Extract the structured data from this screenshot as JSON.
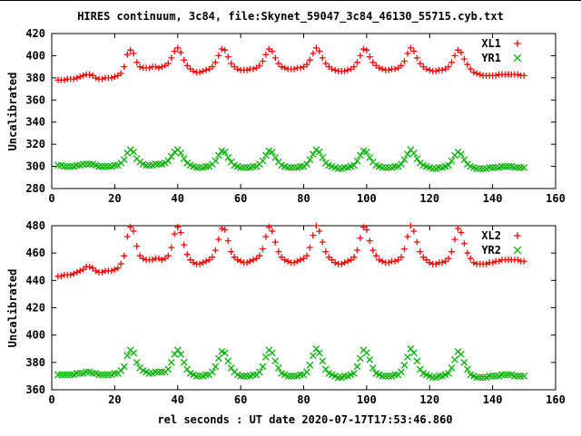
{
  "title": "HIRES continuum, 3c84, file:Skynet_59047_3c84_46130_55715.cyb.txt",
  "xlabel": "rel seconds : UT date 2020-07-17T17:53:46.860",
  "colors": {
    "red": "#ff0000",
    "green": "#00b000",
    "frame": "#000000"
  },
  "chart_data": [
    {
      "type": "scatter",
      "ylabel": "Uncalibrated",
      "xlim": [
        0,
        160
      ],
      "ylim": [
        280,
        420
      ],
      "x_ticks": [
        0,
        20,
        40,
        60,
        80,
        100,
        120,
        140,
        160
      ],
      "y_ticks": [
        280,
        300,
        320,
        340,
        360,
        380,
        400,
        420
      ],
      "grid": false,
      "legend_position": "top-right",
      "series": [
        {
          "name": "XL1",
          "marker": "plus",
          "color": "#ff0000",
          "x_start": 2,
          "x_step": 1,
          "values": [
            378,
            378,
            378,
            379,
            379,
            379,
            380,
            381,
            382,
            383,
            383,
            382,
            380,
            379,
            379,
            380,
            380,
            380,
            381,
            382,
            384,
            390,
            401,
            405,
            402,
            394,
            390,
            389,
            389,
            389,
            390,
            390,
            389,
            390,
            391,
            393,
            398,
            404,
            407,
            403,
            396,
            391,
            388,
            386,
            385,
            385,
            386,
            387,
            388,
            390,
            394,
            400,
            406,
            405,
            399,
            393,
            390,
            388,
            387,
            387,
            387,
            388,
            388,
            389,
            391,
            395,
            401,
            406,
            404,
            398,
            393,
            390,
            389,
            388,
            388,
            388,
            389,
            389,
            390,
            392,
            396,
            402,
            407,
            404,
            398,
            393,
            390,
            388,
            387,
            386,
            386,
            386,
            387,
            388,
            390,
            394,
            400,
            406,
            405,
            399,
            394,
            391,
            389,
            388,
            387,
            387,
            388,
            388,
            389,
            391,
            395,
            402,
            407,
            404,
            398,
            393,
            390,
            388,
            387,
            386,
            386,
            387,
            387,
            388,
            390,
            394,
            400,
            405,
            403,
            397,
            392,
            388,
            385,
            384,
            383,
            382,
            382,
            382,
            382,
            382,
            383,
            383,
            383,
            383,
            383,
            383,
            383,
            382,
            382
          ]
        },
        {
          "name": "YR1",
          "marker": "cross",
          "color": "#00b000",
          "x_start": 2,
          "x_step": 1,
          "values": [
            301,
            301,
            300,
            300,
            300,
            300,
            301,
            301,
            302,
            302,
            302,
            302,
            301,
            300,
            300,
            300,
            300,
            300,
            301,
            301,
            303,
            306,
            312,
            315,
            313,
            307,
            304,
            302,
            301,
            301,
            301,
            302,
            302,
            302,
            303,
            305,
            309,
            313,
            315,
            312,
            307,
            303,
            301,
            300,
            299,
            299,
            299,
            300,
            300,
            302,
            305,
            310,
            314,
            313,
            308,
            304,
            301,
            300,
            299,
            299,
            299,
            299,
            300,
            300,
            302,
            305,
            310,
            314,
            313,
            308,
            304,
            301,
            300,
            299,
            299,
            299,
            299,
            300,
            300,
            302,
            306,
            311,
            315,
            313,
            308,
            303,
            301,
            300,
            299,
            298,
            298,
            299,
            299,
            300,
            301,
            305,
            310,
            314,
            313,
            308,
            304,
            301,
            300,
            299,
            299,
            299,
            299,
            300,
            300,
            302,
            306,
            311,
            315,
            312,
            307,
            303,
            301,
            300,
            299,
            298,
            298,
            299,
            299,
            300,
            301,
            305,
            310,
            313,
            311,
            306,
            302,
            300,
            299,
            298,
            298,
            298,
            298,
            299,
            299,
            299,
            299,
            300,
            300,
            300,
            300,
            299,
            299,
            299,
            299
          ]
        }
      ]
    },
    {
      "type": "scatter",
      "ylabel": "Uncalibrated",
      "xlim": [
        0,
        160
      ],
      "ylim": [
        360,
        480
      ],
      "x_ticks": [
        0,
        20,
        40,
        60,
        80,
        100,
        120,
        140,
        160
      ],
      "y_ticks": [
        360,
        380,
        400,
        420,
        440,
        460,
        480
      ],
      "grid": false,
      "legend_position": "top-right",
      "series": [
        {
          "name": "XL2",
          "marker": "plus",
          "color": "#ff0000",
          "x_start": 2,
          "x_step": 1,
          "values": [
            443,
            443,
            444,
            444,
            444,
            445,
            446,
            447,
            448,
            450,
            450,
            449,
            447,
            446,
            446,
            447,
            447,
            447,
            448,
            449,
            452,
            458,
            472,
            479,
            476,
            465,
            458,
            456,
            455,
            455,
            455,
            456,
            456,
            455,
            456,
            458,
            464,
            474,
            479,
            475,
            466,
            459,
            455,
            453,
            452,
            452,
            453,
            454,
            455,
            457,
            462,
            470,
            478,
            477,
            469,
            461,
            457,
            455,
            454,
            453,
            453,
            454,
            455,
            456,
            458,
            463,
            472,
            479,
            476,
            468,
            461,
            457,
            455,
            454,
            453,
            453,
            454,
            455,
            456,
            458,
            464,
            473,
            480,
            476,
            468,
            461,
            457,
            455,
            453,
            452,
            452,
            453,
            454,
            455,
            457,
            462,
            471,
            479,
            477,
            469,
            462,
            458,
            455,
            454,
            453,
            453,
            454,
            454,
            455,
            457,
            463,
            472,
            480,
            476,
            468,
            461,
            457,
            455,
            453,
            452,
            452,
            453,
            453,
            454,
            456,
            461,
            470,
            478,
            475,
            467,
            460,
            456,
            453,
            452,
            452,
            452,
            452,
            453,
            453,
            454,
            454,
            455,
            455,
            455,
            455,
            455,
            455,
            454,
            454
          ]
        },
        {
          "name": "YR2",
          "marker": "cross",
          "color": "#00b000",
          "x_start": 2,
          "x_step": 1,
          "values": [
            371,
            371,
            371,
            371,
            371,
            371,
            372,
            372,
            372,
            373,
            373,
            372,
            372,
            371,
            371,
            371,
            371,
            371,
            372,
            372,
            374,
            377,
            385,
            389,
            387,
            380,
            376,
            374,
            373,
            372,
            372,
            373,
            373,
            373,
            373,
            375,
            380,
            386,
            389,
            386,
            380,
            375,
            372,
            371,
            370,
            370,
            370,
            371,
            371,
            373,
            377,
            383,
            388,
            387,
            381,
            376,
            373,
            371,
            370,
            370,
            370,
            370,
            371,
            371,
            373,
            377,
            384,
            389,
            387,
            381,
            376,
            372,
            371,
            370,
            370,
            370,
            370,
            371,
            371,
            373,
            378,
            385,
            390,
            387,
            381,
            375,
            372,
            371,
            370,
            369,
            369,
            370,
            370,
            371,
            372,
            377,
            383,
            389,
            387,
            382,
            376,
            372,
            371,
            370,
            370,
            370,
            370,
            371,
            371,
            373,
            378,
            384,
            390,
            387,
            381,
            375,
            372,
            371,
            370,
            369,
            369,
            370,
            370,
            371,
            372,
            376,
            382,
            388,
            386,
            380,
            375,
            371,
            370,
            369,
            369,
            369,
            369,
            370,
            370,
            370,
            370,
            371,
            371,
            371,
            371,
            370,
            370,
            370,
            370
          ]
        }
      ]
    }
  ]
}
